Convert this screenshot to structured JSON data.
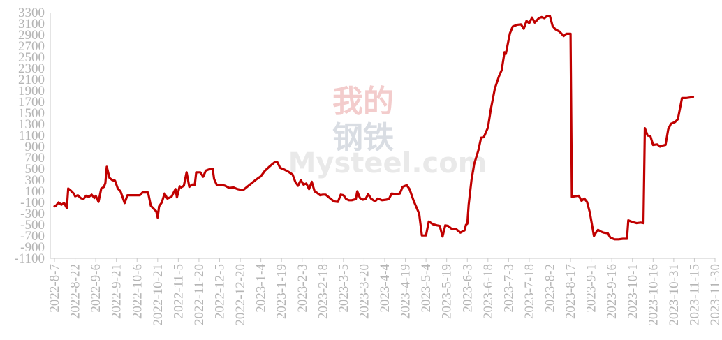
{
  "watermark": {
    "cn_top": "我的",
    "cn_bottom": "钢铁",
    "en": "Mysteel.com",
    "colors": {
      "cn_top": "#f3cccc",
      "cn_bottom": "#d9dde3",
      "en": "#e9e9e9"
    }
  },
  "chart_data": {
    "type": "line",
    "title": "",
    "xlabel": "",
    "ylabel": "",
    "ylim": [
      -1100,
      3300
    ],
    "y_ticks": [
      "3300",
      "3100",
      "2900",
      "2700",
      "2500",
      "2300",
      "2100",
      "1900",
      "1700",
      "1500",
      "1300",
      "1100",
      "900",
      "700",
      "500",
      "300",
      "100",
      "-100",
      "-300",
      "-500",
      "-700",
      "-900",
      "-1100"
    ],
    "x_ticks": [
      "2022-8-7",
      "2022-8-22",
      "2022-9-6",
      "2022-9-21",
      "2022-10-6",
      "2022-10-21",
      "2022-11-5",
      "2022-11-20",
      "2022-12-5",
      "2022-12-20",
      "2023-1-4",
      "2023-1-19",
      "2023-2-3",
      "2023-2-18",
      "2023-3-5",
      "2023-3-20",
      "2023-4-4",
      "2023-4-19",
      "2023-5-4",
      "2023-5-19",
      "2023-6-3",
      "2023-6-18",
      "2023-7-3",
      "2023-7-18",
      "2023-8-2",
      "2023-8-17",
      "2023-9-1",
      "2023-9-16",
      "2023-10-1",
      "2023-10-16",
      "2023-10-31",
      "2023-11-15",
      "2023-11-30"
    ],
    "grid": false,
    "legend": "none",
    "series": [
      {
        "color": "#c00000",
        "points": [
          [
            "2022-8-7",
            -170
          ],
          [
            "2022-8-8",
            -160
          ],
          [
            "2022-8-10",
            -100
          ],
          [
            "2022-8-12",
            -140
          ],
          [
            "2022-8-14",
            -110
          ],
          [
            "2022-8-16",
            -200
          ],
          [
            "2022-8-17",
            150
          ],
          [
            "2022-8-19",
            110
          ],
          [
            "2022-8-21",
            60
          ],
          [
            "2022-8-22",
            10
          ],
          [
            "2022-8-24",
            30
          ],
          [
            "2022-8-26",
            -20
          ],
          [
            "2022-8-28",
            -40
          ],
          [
            "2022-8-30",
            20
          ],
          [
            "2022-9-1",
            0
          ],
          [
            "2022-9-3",
            40
          ],
          [
            "2022-9-5",
            -20
          ],
          [
            "2022-9-6",
            20
          ],
          [
            "2022-9-8",
            -90
          ],
          [
            "2022-9-10",
            150
          ],
          [
            "2022-9-12",
            180
          ],
          [
            "2022-9-13",
            250
          ],
          [
            "2022-9-14",
            540
          ],
          [
            "2022-9-16",
            340
          ],
          [
            "2022-9-18",
            300
          ],
          [
            "2022-9-20",
            290
          ],
          [
            "2022-9-22",
            150
          ],
          [
            "2022-9-24",
            100
          ],
          [
            "2022-9-27",
            -110
          ],
          [
            "2022-9-29",
            30
          ],
          [
            "2022-10-2",
            30
          ],
          [
            "2022-10-5",
            30
          ],
          [
            "2022-10-8",
            30
          ],
          [
            "2022-10-10",
            80
          ],
          [
            "2022-10-14",
            80
          ],
          [
            "2022-10-16",
            -160
          ],
          [
            "2022-10-18",
            -210
          ],
          [
            "2022-10-20",
            -260
          ],
          [
            "2022-10-21",
            -370
          ],
          [
            "2022-10-22",
            -170
          ],
          [
            "2022-10-24",
            -100
          ],
          [
            "2022-10-26",
            60
          ],
          [
            "2022-10-28",
            -30
          ],
          [
            "2022-10-31",
            0
          ],
          [
            "2022-11-3",
            140
          ],
          [
            "2022-11-4",
            -10
          ],
          [
            "2022-11-6",
            190
          ],
          [
            "2022-11-7",
            170
          ],
          [
            "2022-11-9",
            200
          ],
          [
            "2022-11-11",
            440
          ],
          [
            "2022-11-13",
            180
          ],
          [
            "2022-11-15",
            220
          ],
          [
            "2022-11-17",
            220
          ],
          [
            "2022-11-18",
            440
          ],
          [
            "2022-11-21",
            440
          ],
          [
            "2022-11-23",
            360
          ],
          [
            "2022-11-25",
            470
          ],
          [
            "2022-11-27",
            490
          ],
          [
            "2022-11-30",
            500
          ],
          [
            "2022-12-1",
            320
          ],
          [
            "2022-12-3",
            210
          ],
          [
            "2022-12-6",
            220
          ],
          [
            "2022-12-9",
            200
          ],
          [
            "2022-12-12",
            160
          ],
          [
            "2022-12-15",
            170
          ],
          [
            "2022-12-18",
            140
          ],
          [
            "2022-12-22",
            120
          ],
          [
            "2022-12-27",
            220
          ],
          [
            "2022-12-31",
            300
          ],
          [
            "2023-1-4",
            370
          ],
          [
            "2023-1-7",
            470
          ],
          [
            "2023-1-11",
            560
          ],
          [
            "2023-1-14",
            620
          ],
          [
            "2023-1-16",
            620
          ],
          [
            "2023-1-18",
            520
          ],
          [
            "2023-1-21",
            490
          ],
          [
            "2023-1-24",
            450
          ],
          [
            "2023-1-27",
            400
          ],
          [
            "2023-1-29",
            270
          ],
          [
            "2023-1-31",
            200
          ],
          [
            "2023-2-2",
            300
          ],
          [
            "2023-2-4",
            220
          ],
          [
            "2023-2-6",
            240
          ],
          [
            "2023-2-8",
            140
          ],
          [
            "2023-2-10",
            270
          ],
          [
            "2023-2-12",
            100
          ],
          [
            "2023-2-14",
            70
          ],
          [
            "2023-2-16",
            30
          ],
          [
            "2023-2-18",
            40
          ],
          [
            "2023-2-20",
            40
          ],
          [
            "2023-2-23",
            -20
          ],
          [
            "2023-2-26",
            -80
          ],
          [
            "2023-3-1",
            -90
          ],
          [
            "2023-3-3",
            40
          ],
          [
            "2023-3-5",
            30
          ],
          [
            "2023-3-7",
            -40
          ],
          [
            "2023-3-9",
            -60
          ],
          [
            "2023-3-11",
            -60
          ],
          [
            "2023-3-14",
            -40
          ],
          [
            "2023-3-15",
            100
          ],
          [
            "2023-3-17",
            -20
          ],
          [
            "2023-3-19",
            -50
          ],
          [
            "2023-3-21",
            -40
          ],
          [
            "2023-3-23",
            50
          ],
          [
            "2023-3-25",
            -30
          ],
          [
            "2023-3-28",
            -80
          ],
          [
            "2023-3-30",
            -30
          ],
          [
            "2023-4-2",
            -60
          ],
          [
            "2023-4-5",
            -50
          ],
          [
            "2023-4-7",
            -40
          ],
          [
            "2023-4-9",
            60
          ],
          [
            "2023-4-12",
            50
          ],
          [
            "2023-4-15",
            60
          ],
          [
            "2023-4-17",
            180
          ],
          [
            "2023-4-20",
            210
          ],
          [
            "2023-4-22",
            140
          ],
          [
            "2023-4-25",
            -70
          ],
          [
            "2023-4-29",
            -300
          ],
          [
            "2023-5-1",
            -690
          ],
          [
            "2023-5-4",
            -690
          ],
          [
            "2023-5-6",
            -440
          ],
          [
            "2023-5-9",
            -490
          ],
          [
            "2023-5-12",
            -510
          ],
          [
            "2023-5-14",
            -520
          ],
          [
            "2023-5-16",
            -710
          ],
          [
            "2023-5-18",
            -510
          ],
          [
            "2023-5-20",
            -520
          ],
          [
            "2023-5-23",
            -580
          ],
          [
            "2023-5-26",
            -580
          ],
          [
            "2023-5-29",
            -640
          ],
          [
            "2023-6-1",
            -600
          ],
          [
            "2023-6-2",
            -500
          ],
          [
            "2023-6-3",
            -480
          ],
          [
            "2023-6-4",
            -140
          ],
          [
            "2023-6-6",
            300
          ],
          [
            "2023-6-8",
            590
          ],
          [
            "2023-6-11",
            830
          ],
          [
            "2023-6-13",
            1060
          ],
          [
            "2023-6-15",
            1070
          ],
          [
            "2023-6-18",
            1240
          ],
          [
            "2023-6-20",
            1560
          ],
          [
            "2023-6-23",
            1940
          ],
          [
            "2023-6-26",
            2160
          ],
          [
            "2023-6-28",
            2270
          ],
          [
            "2023-6-30",
            2590
          ],
          [
            "2023-7-1",
            2560
          ],
          [
            "2023-7-4",
            2930
          ],
          [
            "2023-7-6",
            3050
          ],
          [
            "2023-7-9",
            3080
          ],
          [
            "2023-7-12",
            3090
          ],
          [
            "2023-7-14",
            3010
          ],
          [
            "2023-7-16",
            3150
          ],
          [
            "2023-7-18",
            3110
          ],
          [
            "2023-7-20",
            3210
          ],
          [
            "2023-7-22",
            3120
          ],
          [
            "2023-7-25",
            3200
          ],
          [
            "2023-7-27",
            3220
          ],
          [
            "2023-7-29",
            3200
          ],
          [
            "2023-7-31",
            3240
          ],
          [
            "2023-8-2",
            3240
          ],
          [
            "2023-8-4",
            3060
          ],
          [
            "2023-8-6",
            3000
          ],
          [
            "2023-8-9",
            2960
          ],
          [
            "2023-8-12",
            2880
          ],
          [
            "2023-8-14",
            2920
          ],
          [
            "2023-8-17",
            2920
          ],
          [
            "2023-8-18",
            0
          ],
          [
            "2023-8-20",
            10
          ],
          [
            "2023-8-23",
            20
          ],
          [
            "2023-8-25",
            -70
          ],
          [
            "2023-8-27",
            -30
          ],
          [
            "2023-8-29",
            -90
          ],
          [
            "2023-8-31",
            -280
          ],
          [
            "2023-9-3",
            -700
          ],
          [
            "2023-9-5",
            -620
          ],
          [
            "2023-9-6",
            -590
          ],
          [
            "2023-9-8",
            -620
          ],
          [
            "2023-9-10",
            -640
          ],
          [
            "2023-9-13",
            -650
          ],
          [
            "2023-9-15",
            -730
          ],
          [
            "2023-9-18",
            -760
          ],
          [
            "2023-9-21",
            -760
          ],
          [
            "2023-9-24",
            -750
          ],
          [
            "2023-9-27",
            -750
          ],
          [
            "2023-9-28",
            -420
          ],
          [
            "2023-10-1",
            -450
          ],
          [
            "2023-10-4",
            -470
          ],
          [
            "2023-10-7",
            -460
          ],
          [
            "2023-10-9",
            -470
          ],
          [
            "2023-10-10",
            1230
          ],
          [
            "2023-10-12",
            1100
          ],
          [
            "2023-10-14",
            1090
          ],
          [
            "2023-10-16",
            930
          ],
          [
            "2023-10-19",
            940
          ],
          [
            "2023-10-21",
            900
          ],
          [
            "2023-10-23",
            920
          ],
          [
            "2023-10-25",
            930
          ],
          [
            "2023-10-27",
            1210
          ],
          [
            "2023-10-29",
            1310
          ],
          [
            "2023-11-1",
            1340
          ],
          [
            "2023-11-3",
            1390
          ],
          [
            "2023-11-6",
            1770
          ],
          [
            "2023-11-9",
            1770
          ],
          [
            "2023-11-12",
            1780
          ],
          [
            "2023-11-14",
            1790
          ]
        ]
      }
    ]
  }
}
